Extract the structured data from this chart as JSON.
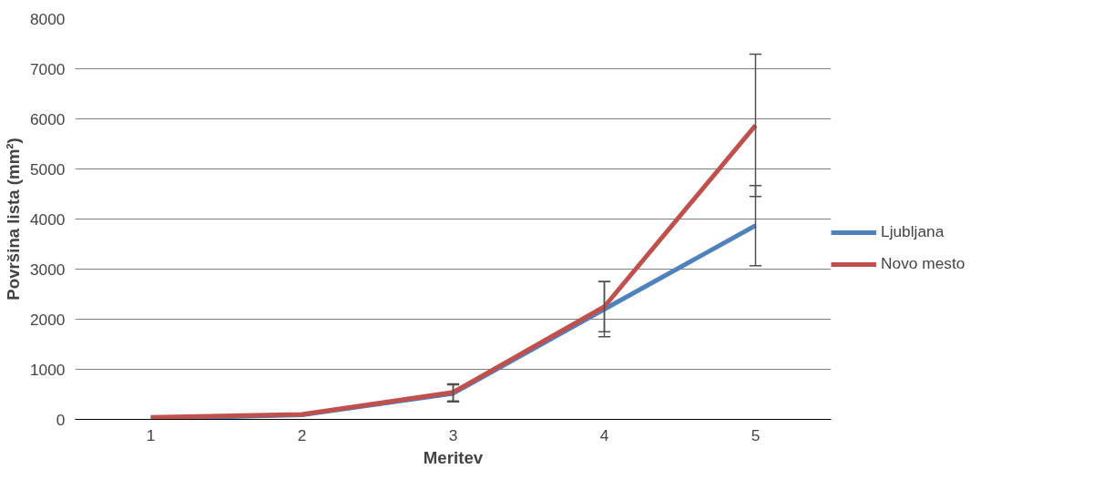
{
  "chart_data": {
    "type": "line",
    "xlabel": "Meritev",
    "ylabel": "Površina lista (mm²)",
    "categories": [
      "1",
      "2",
      "3",
      "4",
      "5"
    ],
    "ylim": [
      0,
      8000
    ],
    "yticks": [
      0,
      1000,
      2000,
      3000,
      4000,
      5000,
      6000,
      7000,
      8000
    ],
    "grid": "y",
    "legend": "right",
    "marker": "none",
    "series": [
      {
        "name": "Ljubljana",
        "color": "#4f81bd",
        "values": [
          10,
          90,
          520,
          2200,
          3870
        ],
        "errors": [
          null,
          null,
          170,
          550,
          800
        ]
      },
      {
        "name": "Novo mesto",
        "color": "#c0504d",
        "values": [
          40,
          100,
          540,
          2250,
          5870
        ],
        "errors": [
          null,
          null,
          170,
          500,
          1420
        ]
      }
    ]
  }
}
